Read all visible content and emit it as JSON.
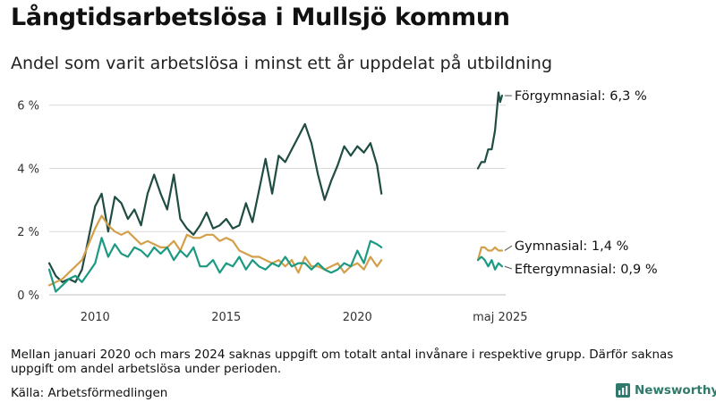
{
  "header": {
    "title": "Långtidsarbetslösa i Mullsjö kommun",
    "subtitle": "Andel som varit arbetslösa i minst ett år uppdelat på utbildning"
  },
  "footer": {
    "note": "Mellan januari 2020 och mars 2024 saknas uppgift om totalt antal invånare i respektive grupp. Därför saknas uppgift om andel arbetslösa under perioden.",
    "source": "Källa: Arbetsförmedlingen",
    "brand": "Newsworthy",
    "brand_color": "#2f7a6b"
  },
  "chart_data": {
    "type": "line",
    "x_ticks": [
      "2010",
      "2015",
      "2020",
      "maj 2025"
    ],
    "y_ticks": [
      "0 %",
      "2 %",
      "4 %",
      "6 %"
    ],
    "ylim": [
      0,
      6.5
    ],
    "grid": true,
    "series": [
      {
        "name": "Förgymnasial",
        "end_label": "Förgymnasial: 6,3 %",
        "color": "#1f4d44",
        "segments": [
          {
            "x": [
              2008.25,
              2008.5,
              2008.75,
              2009.0,
              2009.25,
              2009.5,
              2009.75,
              2010.0,
              2010.25,
              2010.5,
              2010.75,
              2011.0,
              2011.25,
              2011.5,
              2011.75,
              2012.0,
              2012.25,
              2012.5,
              2012.75,
              2013.0,
              2013.25,
              2013.5,
              2013.75,
              2014.0,
              2014.25,
              2014.5,
              2014.75,
              2015.0,
              2015.25,
              2015.5,
              2015.75,
              2016.0,
              2016.25,
              2016.5,
              2016.75,
              2017.0,
              2017.25,
              2017.5,
              2017.75,
              2018.0,
              2018.25,
              2018.5,
              2018.75,
              2019.0,
              2019.25,
              2019.5,
              2019.75,
              2020.0,
              2020.25,
              2020.5,
              2020.75,
              2020.92
            ],
            "y": [
              1.0,
              0.6,
              0.4,
              0.5,
              0.4,
              0.8,
              1.8,
              2.8,
              3.2,
              2.0,
              3.1,
              2.9,
              2.4,
              2.7,
              2.2,
              3.2,
              3.8,
              3.2,
              2.7,
              3.8,
              2.4,
              2.1,
              1.9,
              2.2,
              2.6,
              2.1,
              2.2,
              2.4,
              2.1,
              2.2,
              2.9,
              2.3,
              3.3,
              4.3,
              3.2,
              4.4,
              4.2,
              4.6,
              5.0,
              5.4,
              4.8,
              3.8,
              3.0,
              3.6,
              4.1,
              4.7,
              4.4,
              4.7,
              4.5,
              4.8,
              4.1,
              3.2
            ]
          },
          {
            "x": [
              2024.25,
              2024.42,
              2024.58,
              2024.75,
              2024.92,
              2025.08,
              2025.25,
              2025.33,
              2025.42
            ],
            "y": [
              4.0,
              4.2,
              4.2,
              4.6,
              4.6,
              5.2,
              6.4,
              6.1,
              6.3
            ]
          }
        ]
      },
      {
        "name": "Gymnasial",
        "end_label": "Gymnasial: 1,4 %",
        "color": "#d39f4a",
        "segments": [
          {
            "x": [
              2008.25,
              2008.5,
              2008.75,
              2009.0,
              2009.25,
              2009.5,
              2009.75,
              2010.0,
              2010.25,
              2010.5,
              2010.75,
              2011.0,
              2011.25,
              2011.5,
              2011.75,
              2012.0,
              2012.25,
              2012.5,
              2012.75,
              2013.0,
              2013.25,
              2013.5,
              2013.75,
              2014.0,
              2014.25,
              2014.5,
              2014.75,
              2015.0,
              2015.25,
              2015.5,
              2015.75,
              2016.0,
              2016.25,
              2016.5,
              2016.75,
              2017.0,
              2017.25,
              2017.5,
              2017.75,
              2018.0,
              2018.25,
              2018.5,
              2018.75,
              2019.0,
              2019.25,
              2019.5,
              2019.75,
              2020.0,
              2020.25,
              2020.5,
              2020.75,
              2020.92
            ],
            "y": [
              0.3,
              0.4,
              0.5,
              0.7,
              0.9,
              1.1,
              1.6,
              2.1,
              2.5,
              2.2,
              2.0,
              1.9,
              2.0,
              1.8,
              1.6,
              1.7,
              1.6,
              1.5,
              1.5,
              1.7,
              1.4,
              1.9,
              1.8,
              1.8,
              1.9,
              1.9,
              1.7,
              1.8,
              1.7,
              1.4,
              1.3,
              1.2,
              1.2,
              1.1,
              1.0,
              1.1,
              0.9,
              1.1,
              0.7,
              1.2,
              0.9,
              0.9,
              0.8,
              0.9,
              1.0,
              0.7,
              0.9,
              1.0,
              0.8,
              1.2,
              0.9,
              1.1
            ]
          },
          {
            "x": [
              2024.25,
              2024.42,
              2024.58,
              2024.75,
              2024.92,
              2025.08,
              2025.25,
              2025.42
            ],
            "y": [
              1.1,
              1.5,
              1.5,
              1.4,
              1.4,
              1.5,
              1.4,
              1.4
            ]
          }
        ]
      },
      {
        "name": "Eftergymnasial",
        "end_label": "Eftergymnasial: 0,9 %",
        "color": "#1b9a83",
        "segments": [
          {
            "x": [
              2008.25,
              2008.5,
              2008.75,
              2009.0,
              2009.25,
              2009.5,
              2009.75,
              2010.0,
              2010.25,
              2010.5,
              2010.75,
              2011.0,
              2011.25,
              2011.5,
              2011.75,
              2012.0,
              2012.25,
              2012.5,
              2012.75,
              2013.0,
              2013.25,
              2013.5,
              2013.75,
              2014.0,
              2014.25,
              2014.5,
              2014.75,
              2015.0,
              2015.25,
              2015.5,
              2015.75,
              2016.0,
              2016.25,
              2016.5,
              2016.75,
              2017.0,
              2017.25,
              2017.5,
              2017.75,
              2018.0,
              2018.25,
              2018.5,
              2018.75,
              2019.0,
              2019.25,
              2019.5,
              2019.75,
              2020.0,
              2020.25,
              2020.5,
              2020.75,
              2020.92
            ],
            "y": [
              0.8,
              0.1,
              0.3,
              0.5,
              0.6,
              0.4,
              0.7,
              1.0,
              1.8,
              1.2,
              1.6,
              1.3,
              1.2,
              1.5,
              1.4,
              1.2,
              1.5,
              1.3,
              1.5,
              1.1,
              1.4,
              1.2,
              1.5,
              0.9,
              0.9,
              1.1,
              0.7,
              1.0,
              0.9,
              1.2,
              0.8,
              1.1,
              0.9,
              0.8,
              1.0,
              0.9,
              1.2,
              0.9,
              1.0,
              1.0,
              0.8,
              1.0,
              0.8,
              0.7,
              0.8,
              1.0,
              0.9,
              1.4,
              1.0,
              1.7,
              1.6,
              1.5
            ]
          },
          {
            "x": [
              2024.25,
              2024.42,
              2024.58,
              2024.75,
              2024.92,
              2025.08,
              2025.25,
              2025.42
            ],
            "y": [
              1.1,
              1.2,
              1.1,
              0.9,
              1.1,
              0.8,
              1.0,
              0.9
            ]
          }
        ]
      }
    ]
  }
}
